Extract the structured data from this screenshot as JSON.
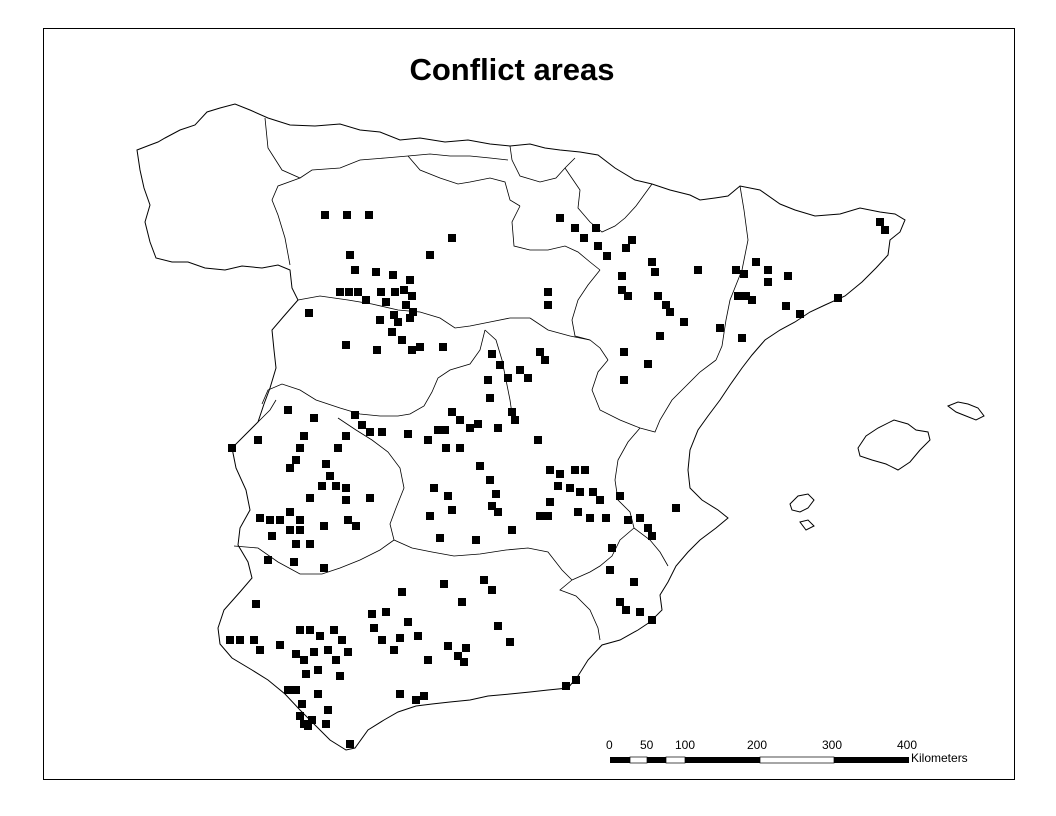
{
  "map": {
    "title": "Conflict areas",
    "colors": {
      "background": "#ffffff",
      "outline": "#000000",
      "conflict_cell": "#000000"
    },
    "scale_bar": {
      "ticks": [
        "0",
        "50",
        "100",
        "200",
        "300",
        "400"
      ],
      "unit": "Kilometers"
    }
  }
}
